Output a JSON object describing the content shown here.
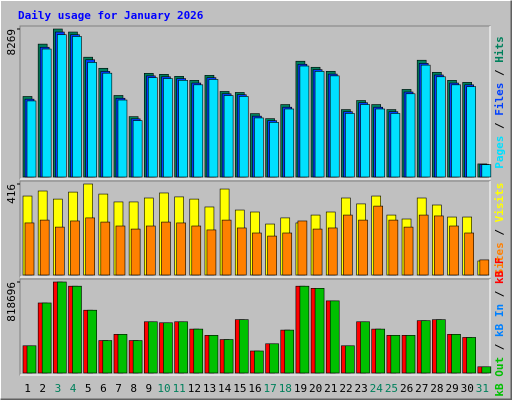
{
  "chart_data": [
    {
      "type": "bar",
      "title": "Daily usage for January 2026",
      "title_color": "#0000ff",
      "legend_separator": " / ",
      "categories": [
        "1",
        "2",
        "3",
        "4",
        "5",
        "6",
        "7",
        "8",
        "9",
        "10",
        "11",
        "12",
        "13",
        "14",
        "15",
        "16",
        "17",
        "18",
        "19",
        "20",
        "21",
        "22",
        "23",
        "24",
        "25",
        "26",
        "27",
        "28",
        "29",
        "30",
        "31"
      ],
      "category_colors": [
        "#000000",
        "#000000",
        "#00805c",
        "#00805c",
        "#000000",
        "#000000",
        "#000000",
        "#000000",
        "#000000",
        "#00805c",
        "#00805c",
        "#000000",
        "#000000",
        "#000000",
        "#000000",
        "#000000",
        "#00805c",
        "#00805c",
        "#000000",
        "#000000",
        "#000000",
        "#000000",
        "#000000",
        "#00805c",
        "#00805c",
        "#000000",
        "#000000",
        "#000000",
        "#000000",
        "#000000",
        "#00805c"
      ],
      "ylim": [
        0,
        8269
      ],
      "yticks": [
        8269
      ],
      "series": [
        {
          "name": "Hits",
          "color": "#00805c",
          "values": [
            4500,
            7425,
            8269,
            8100,
            6694,
            6075,
            4556,
            3375,
            5794,
            5738,
            5625,
            5400,
            5681,
            4781,
            4725,
            3544,
            3263,
            4050,
            6469,
            6131,
            5906,
            3769,
            4275,
            4050,
            3769,
            4894,
            6525,
            5850,
            5400,
            5288,
            731
          ]
        },
        {
          "name": "Files",
          "color": "#0040ff",
          "values": [
            4350,
            7250,
            8100,
            7950,
            6550,
            5900,
            4400,
            3250,
            5650,
            5600,
            5500,
            5250,
            5550,
            4650,
            4600,
            3400,
            3150,
            3900,
            6300,
            6000,
            5750,
            3650,
            4150,
            3900,
            3650,
            4750,
            6350,
            5700,
            5250,
            5150,
            700
          ]
        },
        {
          "name": "Pages",
          "color": "#00e0ff",
          "values": [
            4250,
            7150,
            7950,
            7850,
            6400,
            5800,
            4300,
            3150,
            5550,
            5500,
            5400,
            5150,
            5450,
            4550,
            4500,
            3300,
            3050,
            3800,
            6200,
            5900,
            5650,
            3550,
            4050,
            3800,
            3550,
            4650,
            6250,
            5600,
            5150,
            5050,
            690
          ]
        }
      ]
    },
    {
      "type": "bar",
      "ylim": [
        0,
        416
      ],
      "yticks": [
        416
      ],
      "series": [
        {
          "name": "Visits",
          "color": "#ffff00",
          "values": [
            361,
            384,
            347,
            379,
            416,
            370,
            334,
            334,
            352,
            375,
            357,
            347,
            311,
            393,
            297,
            288,
            233,
            261,
            238,
            274,
            288,
            352,
            325,
            361,
            274,
            256,
            352,
            320,
            265,
            265,
            64
          ]
        },
        {
          "name": "Sites",
          "color": "#ff8000",
          "values": [
            238,
            251,
            219,
            247,
            261,
            242,
            224,
            210,
            224,
            242,
            238,
            224,
            206,
            251,
            215,
            192,
            178,
            192,
            247,
            210,
            215,
            274,
            251,
            315,
            251,
            219,
            274,
            270,
            224,
            192,
            69
          ]
        }
      ]
    },
    {
      "type": "bar",
      "ylim": [
        0,
        818696
      ],
      "yticks": [
        818696
      ],
      "series": [
        {
          "name": "kB F",
          "color": "#ff0000",
          "values": [
            245000,
            630000,
            818696,
            781000,
            565000,
            292000,
            348000,
            292000,
            461000,
            452000,
            461000,
            395000,
            339000,
            301000,
            480000,
            198000,
            263000,
            386000,
            781000,
            762000,
            649000,
            245000,
            461000,
            395000,
            339000,
            339000,
            471000,
            480000,
            348000,
            320000,
            56000
          ]
        },
        {
          "name": "kB In",
          "color": "#0080ff",
          "values": [
            0,
            0,
            0,
            0,
            0,
            0,
            0,
            0,
            0,
            0,
            0,
            0,
            0,
            0,
            0,
            0,
            0,
            0,
            0,
            0,
            0,
            0,
            0,
            0,
            0,
            0,
            0,
            0,
            0,
            0,
            0
          ]
        },
        {
          "name": "kB Out",
          "color": "#00c000",
          "values": [
            245000,
            630000,
            818696,
            781000,
            565000,
            292000,
            348000,
            292000,
            461000,
            452000,
            461000,
            395000,
            339000,
            301000,
            480000,
            198000,
            263000,
            386000,
            781000,
            762000,
            649000,
            245000,
            461000,
            395000,
            339000,
            339000,
            471000,
            480000,
            348000,
            320000,
            56000
          ]
        }
      ]
    }
  ]
}
